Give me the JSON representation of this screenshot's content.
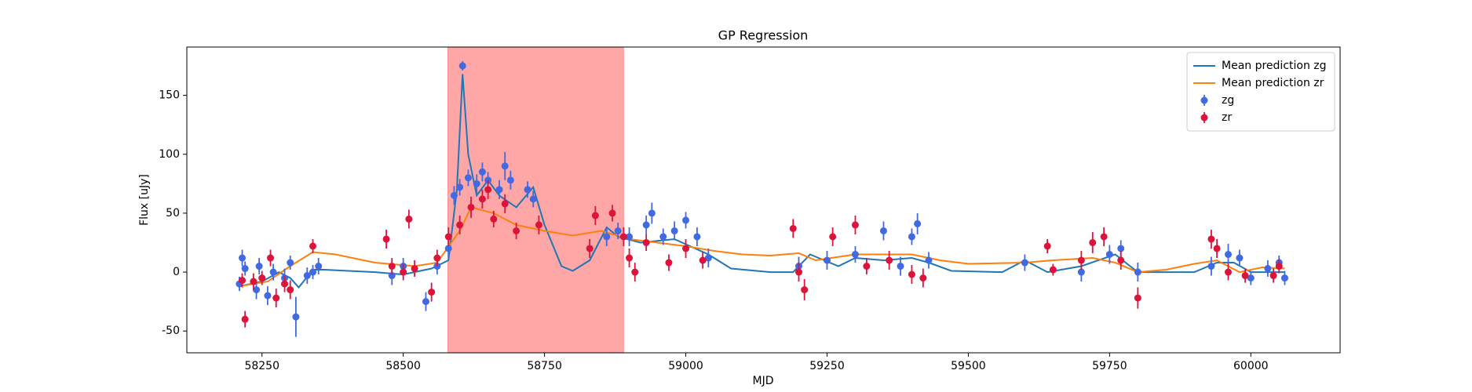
{
  "chart_data": {
    "type": "line",
    "title": "GP Regression",
    "x_label": "MJD",
    "y_label": "Flux [uJy]",
    "xlim": [
      58117,
      60158
    ],
    "ylim": [
      -68.5,
      191
    ],
    "xticks": [
      58250,
      58500,
      58750,
      59000,
      59250,
      59500,
      59750,
      60000
    ],
    "yticks": [
      -50,
      0,
      50,
      100,
      150
    ],
    "legend": "upper right",
    "shade": [
      58579,
      58890
    ],
    "shade_color": "#ff0000",
    "series": [
      {
        "name": "Mean prediction zg",
        "kind": "line",
        "color": "#1f77b4",
        "x": [
          58210,
          58250,
          58280,
          58300,
          58315,
          58340,
          58360,
          58450,
          58500,
          58550,
          58580,
          58595,
          58605,
          58615,
          58630,
          58650,
          58670,
          58700,
          58730,
          58750,
          58780,
          58800,
          58830,
          58860,
          58880,
          58920,
          58980,
          59040,
          59080,
          59150,
          59190,
          59220,
          59270,
          59300,
          59350,
          59400,
          59430,
          59470,
          59560,
          59600,
          59640,
          59700,
          59760,
          59800,
          59900,
          59940,
          59970,
          60000,
          60060
        ],
        "values": [
          -12,
          -8,
          0,
          -5,
          -13,
          2,
          2,
          0,
          -2,
          3,
          10,
          70,
          168,
          100,
          65,
          78,
          65,
          55,
          72,
          40,
          5,
          1,
          10,
          38,
          30,
          25,
          28,
          15,
          3,
          0,
          0,
          15,
          5,
          12,
          10,
          12,
          8,
          1,
          0,
          10,
          0,
          5,
          15,
          0,
          0,
          8,
          8,
          0,
          0
        ]
      },
      {
        "name": "Mean prediction zr",
        "kind": "line",
        "color": "#ff7f0e",
        "x": [
          58210,
          58260,
          58300,
          58340,
          58380,
          58450,
          58520,
          58560,
          58600,
          58620,
          58660,
          58700,
          58750,
          58800,
          58850,
          58900,
          58950,
          59000,
          59050,
          59100,
          59150,
          59200,
          59230,
          59300,
          59400,
          59450,
          59500,
          59600,
          59650,
          59720,
          59760,
          59800,
          59850,
          59900,
          59940,
          59980,
          60020,
          60060
        ],
        "values": [
          -12,
          -8,
          5,
          17,
          15,
          8,
          5,
          8,
          35,
          55,
          50,
          40,
          35,
          31,
          35,
          28,
          25,
          22,
          18,
          15,
          14,
          16,
          10,
          15,
          15,
          10,
          7,
          8,
          10,
          12,
          8,
          0,
          2,
          7,
          10,
          0,
          4,
          3
        ]
      },
      {
        "name": "zg",
        "kind": "errorbar",
        "color": "#4169e1",
        "x": [
          58210,
          58215,
          58220,
          58240,
          58245,
          58260,
          58270,
          58290,
          58300,
          58310,
          58330,
          58340,
          58350,
          58480,
          58500,
          58540,
          58560,
          58580,
          58590,
          58600,
          58605,
          58615,
          58630,
          58640,
          58650,
          58670,
          58680,
          58690,
          58720,
          58730,
          58860,
          58880,
          58900,
          58930,
          58940,
          58960,
          58980,
          59000,
          59020,
          59040,
          59200,
          59250,
          59300,
          59350,
          59380,
          59400,
          59410,
          59430,
          59600,
          59700,
          59750,
          59770,
          59800,
          59930,
          59960,
          59980,
          60000,
          60030,
          60050,
          60060
        ],
        "values": [
          -10,
          12,
          3,
          -15,
          5,
          -20,
          0,
          -5,
          8,
          -38,
          -3,
          0,
          5,
          -3,
          5,
          -25,
          5,
          20,
          65,
          72,
          175,
          80,
          75,
          85,
          78,
          70,
          90,
          78,
          70,
          62,
          30,
          35,
          30,
          40,
          50,
          30,
          35,
          44,
          30,
          12,
          5,
          10,
          15,
          35,
          5,
          30,
          41,
          10,
          8,
          0,
          15,
          20,
          0,
          5,
          15,
          12,
          -5,
          3,
          8,
          -5
        ],
        "errors": [
          6,
          7,
          6,
          8,
          7,
          8,
          7,
          8,
          6,
          17,
          7,
          6,
          7,
          8,
          7,
          8,
          7,
          8,
          8,
          7,
          4,
          7,
          8,
          8,
          7,
          8,
          12,
          8,
          7,
          7,
          8,
          7,
          8,
          8,
          9,
          7,
          8,
          7,
          8,
          8,
          8,
          8,
          7,
          8,
          8,
          7,
          9,
          7,
          7,
          8,
          8,
          7,
          8,
          8,
          9,
          7,
          6,
          7,
          6,
          6
        ]
      },
      {
        "name": "zr",
        "kind": "errorbar",
        "color": "#dc143c",
        "x": [
          58215,
          58220,
          58235,
          58250,
          58265,
          58275,
          58290,
          58300,
          58340,
          58470,
          58480,
          58500,
          58510,
          58520,
          58550,
          58560,
          58580,
          58600,
          58620,
          58640,
          58650,
          58660,
          58680,
          58700,
          58740,
          58830,
          58840,
          58870,
          58890,
          58900,
          58910,
          58930,
          58970,
          59000,
          59030,
          59190,
          59200,
          59210,
          59260,
          59300,
          59320,
          59360,
          59400,
          59420,
          59640,
          59650,
          59700,
          59720,
          59740,
          59770,
          59800,
          59930,
          59940,
          59960,
          59990,
          60040,
          60050
        ],
        "values": [
          -7,
          -40,
          -8,
          -5,
          12,
          -22,
          -10,
          -15,
          22,
          28,
          5,
          0,
          45,
          3,
          -17,
          12,
          30,
          40,
          55,
          62,
          70,
          45,
          58,
          35,
          40,
          20,
          48,
          50,
          30,
          12,
          0,
          25,
          8,
          20,
          10,
          37,
          0,
          -15,
          30,
          40,
          5,
          10,
          -2,
          -5,
          22,
          2,
          10,
          25,
          30,
          10,
          -22,
          28,
          20,
          0,
          -3,
          -3,
          5
        ],
        "errors": [
          6,
          7,
          7,
          6,
          7,
          8,
          7,
          8,
          6,
          8,
          7,
          7,
          8,
          7,
          8,
          7,
          8,
          8,
          9,
          8,
          8,
          7,
          8,
          7,
          8,
          8,
          8,
          7,
          8,
          8,
          8,
          7,
          7,
          8,
          7,
          8,
          8,
          9,
          8,
          8,
          7,
          8,
          8,
          8,
          6,
          5,
          8,
          9,
          8,
          8,
          9,
          8,
          8,
          7,
          6,
          6,
          6
        ]
      }
    ]
  }
}
